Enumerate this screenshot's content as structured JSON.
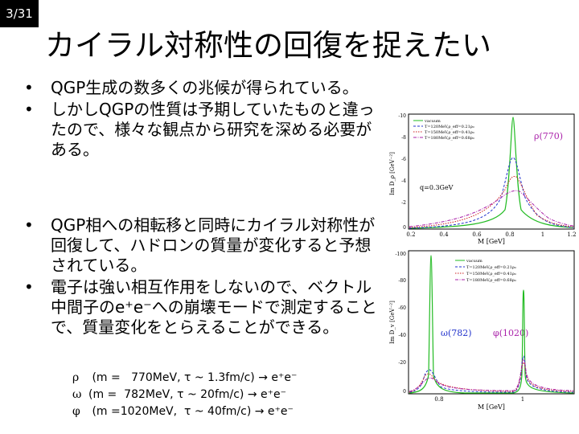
{
  "slide_number": "3/31",
  "title": "カイラル対称性の回復を捉えたい",
  "bullets_top": [
    "QGP生成の数多くの兆候が得られている。",
    "しかしQGPの性質は予期していたものと違ったので、様々な観点から研究を深める必要がある。"
  ],
  "bullets_bottom": [
    "QGP相への相転移と同時にカイラル対称性が回復して、ハドロンの質量が変化すると予想されている。",
    "電子は強い相互作用をしないので、ベクトル中間子のe⁺e⁻への崩壊モードで測定することで、質量変化をとらえることができる。"
  ],
  "mesons": [
    {
      "symbol": "ρ",
      "text": " (m =   770MeV, τ ~ 1.3fm/c) → e⁺e⁻"
    },
    {
      "symbol": "ω",
      "text": "(m =  782MeV, τ ~ 20fm/c) → e⁺e⁻"
    },
    {
      "symbol": "φ",
      "text": " (m =1020MeV,  τ ~ 40fm/c) → e⁺e⁻"
    }
  ],
  "figure_rho": {
    "ylabel": "Im D_ρ [GeV⁻²]",
    "xlabel": "M [GeV]",
    "peak_label": "ρ(770)",
    "q_label": "q=0.3GeV",
    "y_ticks": [
      "-10",
      "-8",
      "-6",
      "-4",
      "-2",
      "0"
    ],
    "x_ticks": [
      "0.2",
      "0.4",
      "0.6",
      "0.8",
      "1",
      "1.2"
    ],
    "legend": [
      "vacuum",
      "T=120MeV,ρ_eff=0.21ρ₀",
      "T=150MeV,ρ_eff=0.41ρ₀",
      "T=180MeV,ρ_eff=0.68ρ₀"
    ]
  },
  "figure_omega": {
    "ylabel": "Im D_v [GeV⁻²]",
    "xlabel": "M [GeV]",
    "omega_label": "ω(782)",
    "phi_label": "φ(1020)",
    "y_ticks": [
      "-100",
      "-80",
      "-60",
      "-40",
      "-20",
      "0"
    ],
    "x_ticks": [
      "0.8",
      "1"
    ],
    "legend": [
      "vacuum",
      "T=120MeV,ρ_eff=0.21ρ₀",
      "T=150MeV,ρ_eff=0.41ρ₀",
      "T=180MeV,ρ_eff=0.68ρ₀"
    ]
  },
  "colors": {
    "vacuum": "#22bb22",
    "t120": "#2233cc",
    "t150": "#cc2222",
    "t180": "#aa22aa"
  }
}
